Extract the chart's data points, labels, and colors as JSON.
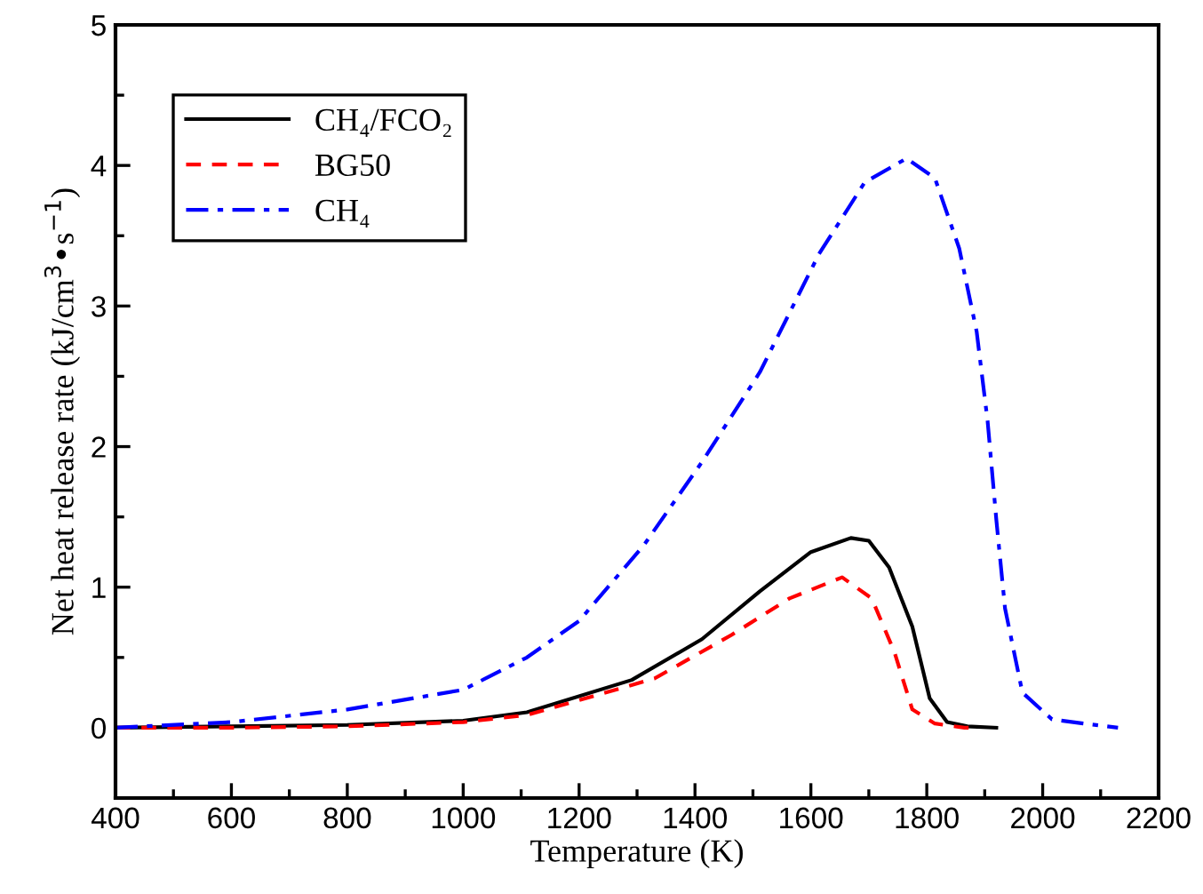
{
  "chart_data": {
    "type": "line",
    "xlabel": "Temperature (K)",
    "ylabel": "Net heat release rate (kJ/cm$^{3}$•s$^{−1}$)",
    "xlim": [
      400,
      2200
    ],
    "xticks": [
      400,
      600,
      800,
      1000,
      1200,
      1400,
      1600,
      1800,
      2000,
      2200
    ],
    "ylim": [
      -0.5,
      5
    ],
    "yticks": [
      0,
      1,
      2,
      3,
      4,
      5
    ],
    "grid": false,
    "legend": "top left",
    "series": [
      {
        "name": "CH₄/FCO₂",
        "color": "#000000",
        "line_style": "solid",
        "x": [
          400,
          600,
          800,
          1000,
          1110,
          1291,
          1412,
          1512,
          1600,
          1669,
          1700,
          1735,
          1775,
          1805,
          1835,
          1870,
          1920
        ],
        "values": [
          0,
          0.01,
          0.02,
          0.05,
          0.11,
          0.34,
          0.63,
          0.97,
          1.25,
          1.35,
          1.33,
          1.14,
          0.72,
          0.21,
          0.04,
          0.01,
          0
        ]
      },
      {
        "name": "BG50",
        "color": "#ff0000",
        "line_style": "dashed",
        "x": [
          400,
          600,
          800,
          1000,
          1110,
          1330,
          1463,
          1563,
          1654,
          1705,
          1744,
          1775,
          1814,
          1865,
          1880
        ],
        "values": [
          0,
          0,
          0.01,
          0.04,
          0.09,
          0.35,
          0.66,
          0.92,
          1.07,
          0.92,
          0.54,
          0.13,
          0.03,
          0,
          0
        ]
      },
      {
        "name": "CH₄",
        "color": "#0000ff",
        "line_style": "dashdot",
        "x": [
          400,
          600,
          800,
          1000,
          1110,
          1200,
          1312,
          1412,
          1512,
          1614,
          1693,
          1765,
          1814,
          1856,
          1886,
          1905,
          1920,
          1935,
          1965,
          2016,
          2070,
          2130
        ],
        "values": [
          0,
          0.04,
          0.13,
          0.27,
          0.5,
          0.76,
          1.3,
          1.89,
          2.53,
          3.37,
          3.88,
          4.05,
          3.91,
          3.41,
          2.82,
          2.18,
          1.48,
          0.85,
          0.25,
          0.06,
          0.03,
          0
        ]
      }
    ]
  }
}
